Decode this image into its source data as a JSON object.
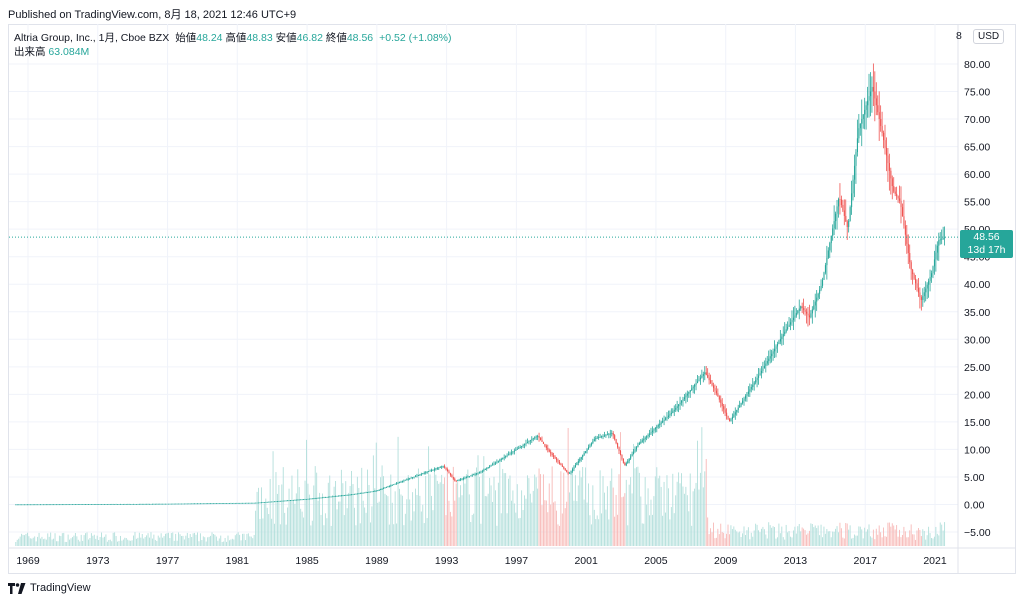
{
  "header": {
    "published": "Published on TradingView.com, 8月 18, 2021 12:46 UTC+9"
  },
  "legend": {
    "symbol": "Altria Group, Inc., 1月, Cboe BZX",
    "open_label": "始値",
    "open": "48.24",
    "high_label": "高値",
    "high": "48.83",
    "low_label": "安値",
    "low": "46.82",
    "close_label": "終値",
    "close": "48.56",
    "change": "+0.52 (+1.08%)",
    "volume_label": "出来高",
    "volume": "63.084M"
  },
  "price_scale": {
    "scale_button": "8",
    "currency_button": "USD"
  },
  "last_price": {
    "price": "48.56",
    "countdown": "13d 17h"
  },
  "footer": {
    "brand": "TradingView"
  },
  "colors": {
    "up": "#26a69a",
    "down": "#ef5350",
    "up_volume": "#b2dfdb",
    "down_volume": "#f7b9b7",
    "grid": "#f0f3fa",
    "axis_text": "#131722"
  },
  "chart_data": {
    "type": "candlestick",
    "interval": "1M",
    "y_axis": {
      "ticks": [
        -5,
        0,
        5,
        10,
        15,
        20,
        25,
        30,
        35,
        40,
        45,
        50,
        55,
        60,
        65,
        70,
        75,
        80
      ],
      "tick_labels": [
        "−5.00",
        "0.00",
        "5.00",
        "10.00",
        "15.00",
        "20.00",
        "25.00",
        "30.00",
        "35.00",
        "40.00",
        "45.00",
        "50.00",
        "55.00",
        "60.00",
        "65.00",
        "70.00",
        "75.00",
        "80.00"
      ],
      "range": [
        -7,
        82
      ]
    },
    "x_axis": {
      "tick_labels": [
        "1969",
        "1973",
        "1977",
        "1981",
        "1985",
        "1989",
        "1993",
        "1997",
        "2001",
        "2005",
        "2009",
        "2013",
        "2017",
        "2021"
      ],
      "range": [
        1968.0,
        2021.8
      ]
    },
    "grid": true,
    "last_price_line": 48.56,
    "price_points": [
      {
        "x": 1968.0,
        "y": 0.0
      },
      {
        "x": 1976.0,
        "y": 0.1
      },
      {
        "x": 1982.0,
        "y": 0.3
      },
      {
        "x": 1985.0,
        "y": 1.0
      },
      {
        "x": 1987.5,
        "y": 1.8
      },
      {
        "x": 1989.0,
        "y": 2.5
      },
      {
        "x": 1991.5,
        "y": 5.5
      },
      {
        "x": 1992.8,
        "y": 7.0
      },
      {
        "x": 1993.5,
        "y": 4.2
      },
      {
        "x": 1995.0,
        "y": 6.0
      },
      {
        "x": 1997.0,
        "y": 10.0
      },
      {
        "x": 1998.2,
        "y": 12.5
      },
      {
        "x": 1998.9,
        "y": 9.5
      },
      {
        "x": 2000.0,
        "y": 5.5
      },
      {
        "x": 2001.5,
        "y": 12.0
      },
      {
        "x": 2002.5,
        "y": 13.0
      },
      {
        "x": 2003.2,
        "y": 7.0
      },
      {
        "x": 2004.0,
        "y": 11.0
      },
      {
        "x": 2006.0,
        "y": 17.0
      },
      {
        "x": 2007.8,
        "y": 24.0
      },
      {
        "x": 2008.5,
        "y": 20.0
      },
      {
        "x": 2009.2,
        "y": 15.0
      },
      {
        "x": 2010.0,
        "y": 19.0
      },
      {
        "x": 2011.0,
        "y": 24.0
      },
      {
        "x": 2012.5,
        "y": 32.0
      },
      {
        "x": 2013.3,
        "y": 36.0
      },
      {
        "x": 2013.8,
        "y": 34.0
      },
      {
        "x": 2014.5,
        "y": 40.0
      },
      {
        "x": 2015.5,
        "y": 56.0
      },
      {
        "x": 2016.0,
        "y": 50.0
      },
      {
        "x": 2016.6,
        "y": 68.0
      },
      {
        "x": 2017.4,
        "y": 76.0
      },
      {
        "x": 2018.0,
        "y": 67.0
      },
      {
        "x": 2018.6,
        "y": 57.0
      },
      {
        "x": 2019.0,
        "y": 55.0
      },
      {
        "x": 2019.6,
        "y": 43.0
      },
      {
        "x": 2020.2,
        "y": 37.0
      },
      {
        "x": 2020.8,
        "y": 42.0
      },
      {
        "x": 2021.2,
        "y": 48.0
      },
      {
        "x": 2021.6,
        "y": 48.56
      }
    ],
    "volume_max_value": 40
  }
}
